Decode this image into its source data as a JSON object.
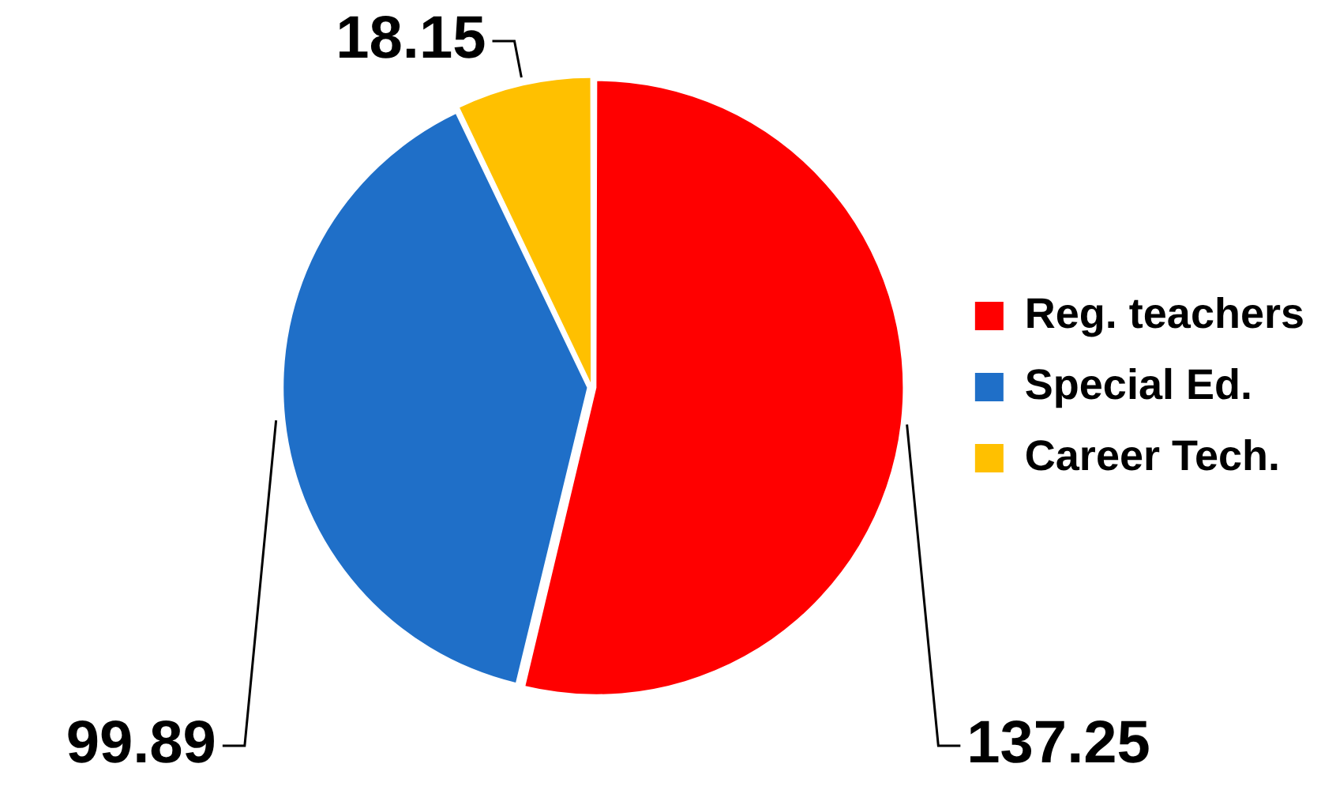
{
  "chart_data": {
    "type": "pie",
    "categories": [
      "Reg. teachers",
      "Special Ed.",
      "Career Tech."
    ],
    "values": [
      137.25,
      99.89,
      18.15
    ],
    "colors": [
      "#ff0000",
      "#1f6fc8",
      "#ffc000"
    ],
    "data_labels": true,
    "legend": "right"
  }
}
